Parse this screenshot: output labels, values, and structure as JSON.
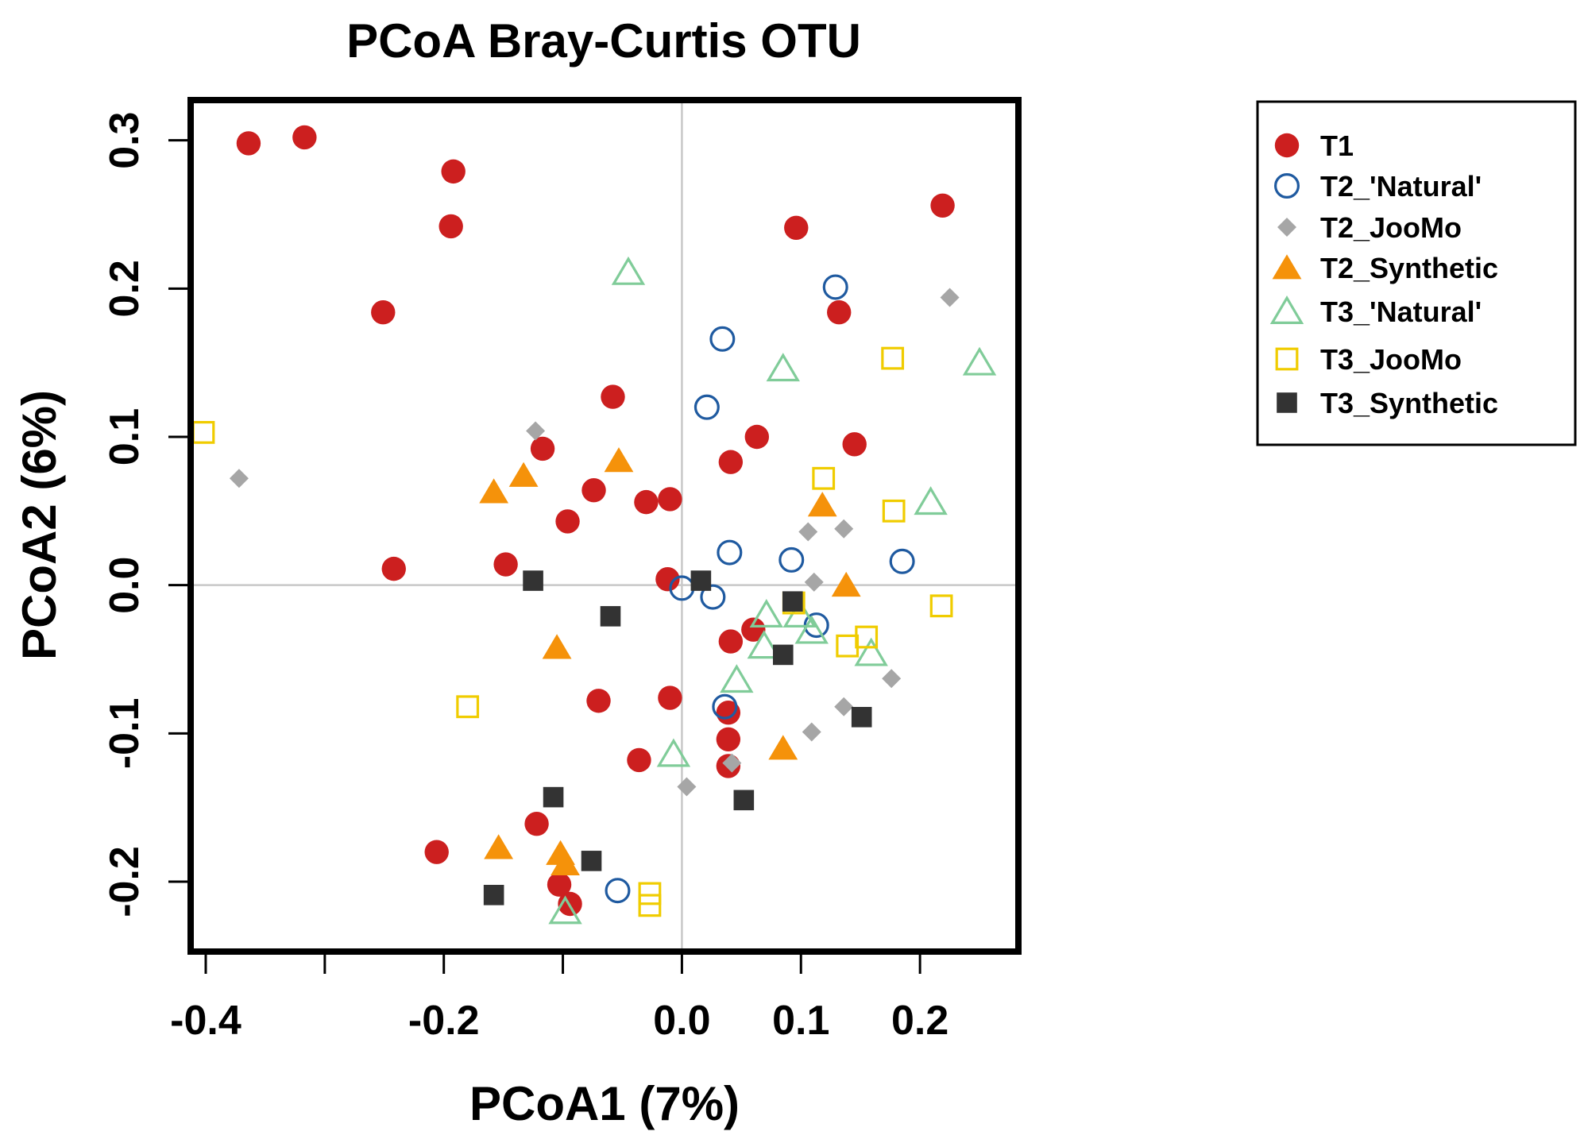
{
  "chart_data": {
    "type": "scatter",
    "title": "PCoA Bray-Curtis OTU",
    "xlabel": "PCoA1 (7%)",
    "ylabel": "PCoA2 (6%)",
    "xlim": [
      -0.41,
      0.28
    ],
    "ylim": [
      -0.245,
      0.325
    ],
    "xticks": [
      -0.4,
      -0.3,
      -0.2,
      -0.1,
      0.0,
      0.1,
      0.2
    ],
    "xtick_labels": [
      "-0.4",
      "",
      "-0.2",
      "",
      "0.0",
      "0.1",
      "0.2"
    ],
    "yticks": [
      -0.2,
      -0.1,
      0.0,
      0.1,
      0.2,
      0.3
    ],
    "ytick_labels": [
      "-0.2",
      "-0.1",
      "0.0",
      "0.1",
      "0.2",
      "0.3"
    ],
    "reference_lines": {
      "x": 0.0,
      "y": 0.0,
      "color": "#c8c8c8"
    },
    "grid": false,
    "legend_position": "right",
    "series": [
      {
        "name": "T1",
        "marker": "filled-circle",
        "color": "#cc1f1f",
        "points": [
          [
            -0.364,
            0.298
          ],
          [
            -0.317,
            0.302
          ],
          [
            -0.192,
            0.279
          ],
          [
            -0.194,
            0.242
          ],
          [
            -0.251,
            0.184
          ],
          [
            -0.058,
            0.127
          ],
          [
            -0.117,
            0.092
          ],
          [
            -0.074,
            0.064
          ],
          [
            -0.096,
            0.043
          ],
          [
            -0.03,
            0.056
          ],
          [
            -0.01,
            0.058
          ],
          [
            -0.242,
            0.011
          ],
          [
            -0.148,
            0.014
          ],
          [
            -0.012,
            0.004
          ],
          [
            0.041,
            0.083
          ],
          [
            0.063,
            0.1
          ],
          [
            0.096,
            0.241
          ],
          [
            0.132,
            0.184
          ],
          [
            0.145,
            0.095
          ],
          [
            0.219,
            0.256
          ],
          [
            0.06,
            -0.03
          ],
          [
            0.041,
            -0.038
          ],
          [
            -0.07,
            -0.078
          ],
          [
            -0.01,
            -0.076
          ],
          [
            0.039,
            -0.086
          ],
          [
            0.039,
            -0.104
          ],
          [
            0.039,
            -0.122
          ],
          [
            -0.036,
            -0.118
          ],
          [
            -0.206,
            -0.18
          ],
          [
            -0.122,
            -0.161
          ],
          [
            -0.103,
            -0.202
          ],
          [
            -0.094,
            -0.215
          ]
        ]
      },
      {
        "name": "T2_'Natural'",
        "marker": "open-circle",
        "color": "#1f5aa0",
        "points": [
          [
            0.129,
            0.201
          ],
          [
            0.034,
            0.166
          ],
          [
            0.021,
            0.12
          ],
          [
            0.04,
            0.022
          ],
          [
            0.092,
            0.017
          ],
          [
            0.185,
            0.016
          ],
          [
            0.0,
            -0.002
          ],
          [
            0.026,
            -0.008
          ],
          [
            0.113,
            -0.027
          ],
          [
            0.036,
            -0.082
          ],
          [
            -0.054,
            -0.206
          ]
        ]
      },
      {
        "name": "T2_JooMo",
        "marker": "filled-diamond",
        "color": "#a6a6a6",
        "points": [
          [
            0.225,
            0.194
          ],
          [
            -0.372,
            0.072
          ],
          [
            -0.123,
            0.104
          ],
          [
            0.106,
            0.036
          ],
          [
            0.136,
            0.038
          ],
          [
            0.111,
            0.002
          ],
          [
            0.176,
            -0.063
          ],
          [
            0.136,
            -0.082
          ],
          [
            0.109,
            -0.099
          ],
          [
            0.042,
            -0.12
          ],
          [
            0.004,
            -0.136
          ]
        ]
      },
      {
        "name": "T2_Synthetic",
        "marker": "filled-triangle",
        "color": "#f5920a",
        "points": [
          [
            -0.133,
            0.074
          ],
          [
            -0.158,
            0.063
          ],
          [
            -0.053,
            0.084
          ],
          [
            0.118,
            0.054
          ],
          [
            0.138,
            0.0
          ],
          [
            -0.105,
            -0.042
          ],
          [
            0.085,
            -0.11
          ],
          [
            -0.154,
            -0.177
          ],
          [
            -0.102,
            -0.181
          ],
          [
            -0.098,
            -0.188
          ]
        ]
      },
      {
        "name": "T3_'Natural'",
        "marker": "open-triangle",
        "color": "#80cc99",
        "points": [
          [
            -0.045,
            0.211
          ],
          [
            0.085,
            0.146
          ],
          [
            0.25,
            0.15
          ],
          [
            0.209,
            0.056
          ],
          [
            0.071,
            -0.02
          ],
          [
            0.099,
            -0.02
          ],
          [
            0.109,
            -0.031
          ],
          [
            0.069,
            -0.041
          ],
          [
            0.046,
            -0.064
          ],
          [
            0.159,
            -0.046
          ],
          [
            -0.007,
            -0.114
          ],
          [
            -0.098,
            -0.22
          ]
        ]
      },
      {
        "name": "T3_JooMo",
        "marker": "open-square",
        "color": "#f0cc00",
        "points": [
          [
            -0.402,
            0.103
          ],
          [
            0.177,
            0.153
          ],
          [
            0.119,
            0.072
          ],
          [
            0.178,
            0.05
          ],
          [
            0.218,
            -0.014
          ],
          [
            0.094,
            -0.012
          ],
          [
            0.139,
            -0.041
          ],
          [
            0.155,
            -0.035
          ],
          [
            -0.18,
            -0.082
          ],
          [
            -0.027,
            -0.208
          ],
          [
            -0.027,
            -0.216
          ]
        ]
      },
      {
        "name": "T3_Synthetic",
        "marker": "filled-square",
        "color": "#333333",
        "points": [
          [
            -0.125,
            0.003
          ],
          [
            0.016,
            0.003
          ],
          [
            -0.06,
            -0.021
          ],
          [
            0.093,
            -0.011
          ],
          [
            0.085,
            -0.047
          ],
          [
            0.151,
            -0.089
          ],
          [
            -0.108,
            -0.143
          ],
          [
            0.052,
            -0.145
          ],
          [
            -0.076,
            -0.186
          ],
          [
            -0.158,
            -0.209
          ]
        ]
      }
    ]
  }
}
